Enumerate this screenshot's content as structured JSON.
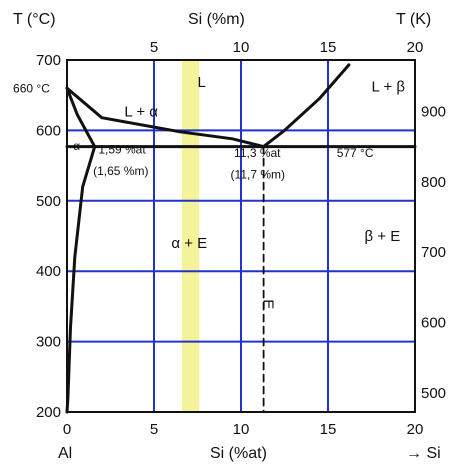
{
  "chart_data": {
    "type": "line",
    "title": "",
    "y_label": "T (°C)",
    "x_bottom_label": "Si (%at)",
    "x_top_label": "Si (%m)",
    "y_right_label": "T (K)",
    "x_origin_label": "Al",
    "x_end_label": "→ Si",
    "xlim": [
      0,
      20
    ],
    "ylim": [
      200,
      700
    ],
    "x_ticks": [
      "0",
      "5",
      "10",
      "15",
      "20"
    ],
    "x_top_ticks": [
      "5",
      "10",
      "15",
      "20"
    ],
    "y_ticks": [
      "200",
      "300",
      "400",
      "500",
      "600",
      "700"
    ],
    "y_right_ticks": [
      "500",
      "600",
      "700",
      "800",
      "900"
    ],
    "grid": true,
    "highlight_band": {
      "x": [
        6.6,
        7.6
      ],
      "color": "#f4f39a"
    },
    "series": [
      {
        "points": [
          [
            0,
            660
          ],
          [
            2.0,
            618
          ],
          [
            6.5,
            598
          ],
          [
            9.5,
            588
          ],
          [
            11.3,
            577
          ]
        ]
      },
      {
        "points": [
          [
            11.3,
            577
          ],
          [
            12.5,
            600
          ],
          [
            14.5,
            645
          ],
          [
            16.2,
            693
          ]
        ]
      },
      {
        "points": [
          [
            0,
            660
          ],
          [
            0.6,
            622
          ],
          [
            1.59,
            577
          ]
        ]
      },
      {
        "points": [
          [
            1.59,
            577
          ],
          [
            0.9,
            520
          ],
          [
            0.45,
            420
          ],
          [
            0.2,
            320
          ],
          [
            0.05,
            220
          ],
          [
            0,
            200
          ]
        ]
      },
      {
        "points": [
          [
            0,
            577
          ],
          [
            20,
            577
          ]
        ]
      },
      {
        "points": [
          [
            11.3,
            577
          ],
          [
            11.3,
            200
          ]
        ],
        "style": "dashed"
      }
    ],
    "annotations": [
      {
        "text": "660 °C",
        "x": -3.1,
        "y": 654
      },
      {
        "text": "L + α",
        "x": 3.3,
        "y": 620
      },
      {
        "text": "L",
        "x": 7.5,
        "y": 662
      },
      {
        "text": "L + β",
        "x": 17.5,
        "y": 655
      },
      {
        "text": "α",
        "x": 0.35,
        "y": 572
      },
      {
        "text": "1,59 %at",
        "x": 1.8,
        "y": 567
      },
      {
        "text": "(1,65 %m)",
        "x": 1.5,
        "y": 537
      },
      {
        "text": "11,3 %at",
        "x": 9.6,
        "y": 562
      },
      {
        "text": "(11,7 %m)",
        "x": 9.4,
        "y": 532
      },
      {
        "text": "577 °C",
        "x": 15.5,
        "y": 562
      },
      {
        "text": "β + E",
        "x": 17.1,
        "y": 443
      },
      {
        "text": "α + E",
        "x": 6.0,
        "y": 433
      },
      {
        "text": "E",
        "x": 11.3,
        "y": 353
      }
    ]
  }
}
